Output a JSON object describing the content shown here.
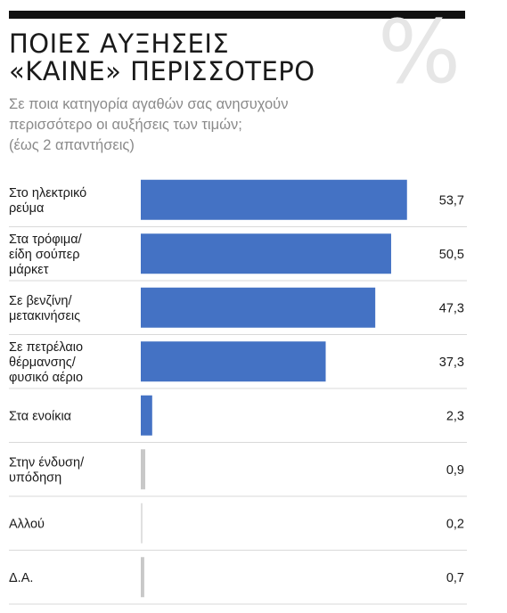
{
  "header": {
    "title_line1": "ΠΟΙΕΣ ΑΥΞΗΣΕΙΣ",
    "title_line2": "«ΚΑΙΝΕ» ΠΕΡΙΣΣΟΤΕΡΟ",
    "percent_symbol": "%",
    "subtitle_line1": "Σε ποια κατηγορία αγαθών σας ανησυχούν",
    "subtitle_line2": "περισσότερο οι αυξήσεις των τιμών;",
    "subtitle_line3": "(έως 2 απαντήσεις)"
  },
  "colors": {
    "bar": "#4472c4",
    "bar_small": "#c8c8c8",
    "divider": "#d9d9d9"
  },
  "chart_data": {
    "type": "bar",
    "orientation": "horizontal",
    "title": "ΠΟΙΕΣ ΑΥΞΗΣΕΙΣ «ΚΑΙΝΕ» ΠΕΡΙΣΣΟΤΕΡΟ",
    "categories": [
      [
        "Στο ηλεκτρικό",
        "ρεύμα"
      ],
      [
        "Στα τρόφιμα/",
        "είδη σούπερ",
        "μάρκετ"
      ],
      [
        "Σε βενζίνη/",
        "μετακινήσεις"
      ],
      [
        "Σε πετρέλαιο",
        "θέρμανσης/",
        "φυσικό αέριο"
      ],
      [
        "Στα ενοίκια"
      ],
      [
        "Στην ένδυση/",
        "υπόδηση"
      ],
      [
        "Αλλού"
      ],
      [
        "Δ.Α."
      ]
    ],
    "values": [
      53.7,
      50.5,
      47.3,
      37.3,
      2.3,
      0.9,
      0.2,
      0.7
    ],
    "value_labels": [
      "53,7",
      "50,5",
      "47,3",
      "37,3",
      "2,3",
      "0,9",
      "0,2",
      "0,7"
    ],
    "xlim": [
      0,
      55
    ],
    "grid": false,
    "legend": "none"
  }
}
